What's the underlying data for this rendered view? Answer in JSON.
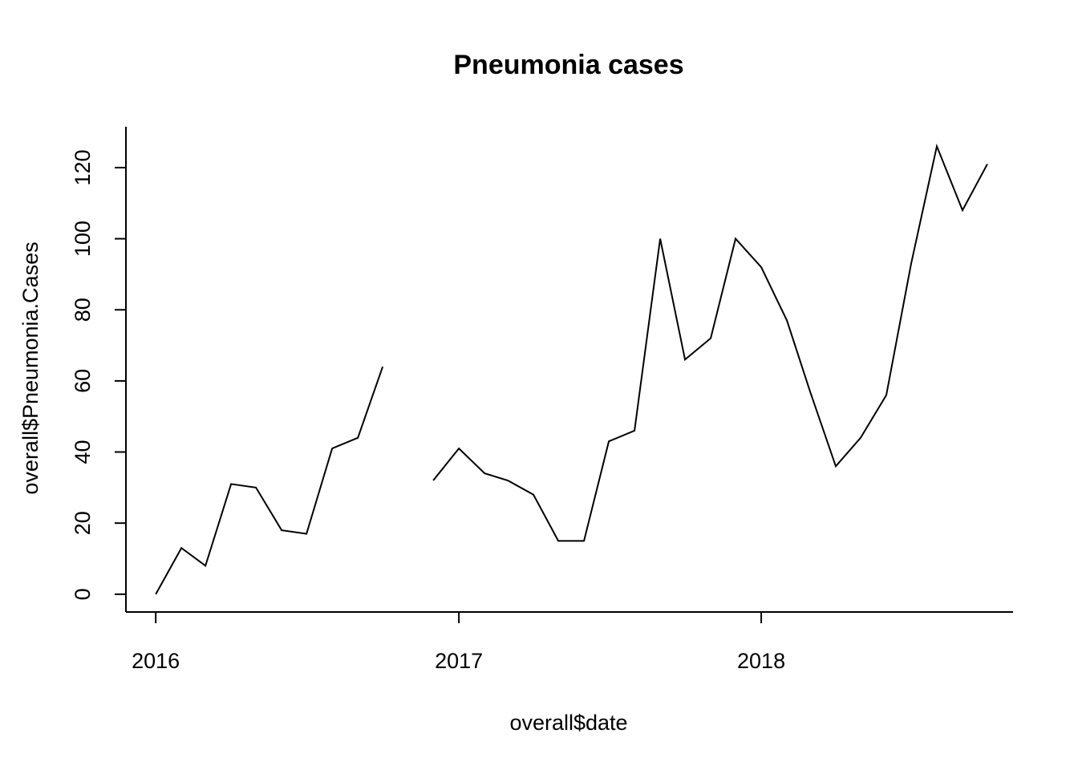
{
  "chart_data": {
    "type": "line",
    "title": "Pneumonia cases",
    "xlabel": "overall$date",
    "ylabel": "overall$Pneumonia.Cases",
    "xlim": [
      "2015-11-26",
      "2018-11-01"
    ],
    "ylim": [
      -5,
      131.5
    ],
    "x_ticks": [
      {
        "value": "2016-01-01",
        "label": "2016"
      },
      {
        "value": "2017-01-01",
        "label": "2017"
      },
      {
        "value": "2018-01-01",
        "label": "2018"
      }
    ],
    "y_ticks": [
      0,
      20,
      40,
      60,
      80,
      100,
      120
    ],
    "grid": false,
    "series": [
      {
        "segments": [
          [
            {
              "x": "2016-01-01",
              "y": 0
            },
            {
              "x": "2016-02-01",
              "y": 13
            },
            {
              "x": "2016-03-01",
              "y": 8
            },
            {
              "x": "2016-04-01",
              "y": 31
            },
            {
              "x": "2016-05-01",
              "y": 30
            },
            {
              "x": "2016-06-01",
              "y": 18
            },
            {
              "x": "2016-07-01",
              "y": 17
            },
            {
              "x": "2016-08-01",
              "y": 41
            },
            {
              "x": "2016-09-01",
              "y": 44
            },
            {
              "x": "2016-10-01",
              "y": 64
            }
          ],
          [
            {
              "x": "2016-12-01",
              "y": 32
            },
            {
              "x": "2017-01-01",
              "y": 41
            },
            {
              "x": "2017-02-01",
              "y": 34
            },
            {
              "x": "2017-03-01",
              "y": 32
            },
            {
              "x": "2017-04-01",
              "y": 28
            },
            {
              "x": "2017-05-01",
              "y": 15
            },
            {
              "x": "2017-06-01",
              "y": 15
            },
            {
              "x": "2017-07-01",
              "y": 43
            },
            {
              "x": "2017-08-01",
              "y": 46
            },
            {
              "x": "2017-09-01",
              "y": 100
            },
            {
              "x": "2017-10-01",
              "y": 66
            },
            {
              "x": "2017-11-01",
              "y": 72
            },
            {
              "x": "2017-12-01",
              "y": 100
            },
            {
              "x": "2018-01-01",
              "y": 92
            },
            {
              "x": "2018-02-01",
              "y": 77
            },
            {
              "x": "2018-03-01",
              "y": 57
            },
            {
              "x": "2018-04-01",
              "y": 36
            },
            {
              "x": "2018-05-01",
              "y": 44
            },
            {
              "x": "2018-06-01",
              "y": 56
            },
            {
              "x": "2018-07-01",
              "y": 93
            },
            {
              "x": "2018-08-01",
              "y": 126
            },
            {
              "x": "2018-09-01",
              "y": 108
            },
            {
              "x": "2018-10-01",
              "y": 121
            }
          ]
        ]
      }
    ]
  }
}
